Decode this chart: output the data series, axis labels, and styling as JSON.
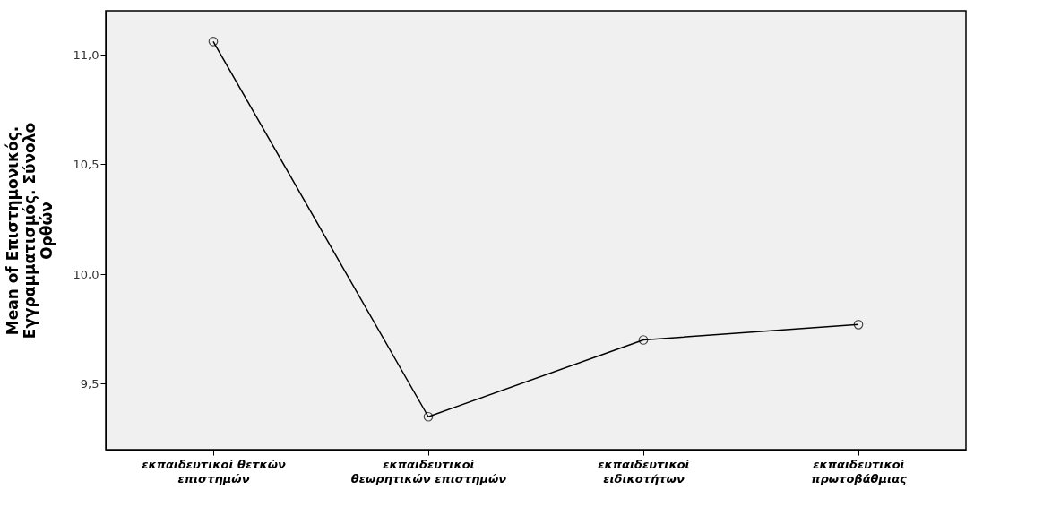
{
  "chart_data": {
    "type": "line",
    "ylabel": "Mean of Επιστημονικός. Εγγραμματισμός. Σύνολο Ορθών",
    "categories": [
      "εκπαιδευτικοί θετκών επιστημών",
      "εκπαιδευτικοί θεωρητικών επιστημών",
      "εκπαιδευτικοί ειδικοτήτων",
      "εκπαιδευτικοί πρωτοβάθμιας"
    ],
    "series": [
      {
        "color": "#000000",
        "values": [
          11.06,
          9.35,
          9.7,
          9.77
        ]
      }
    ],
    "ylim": [
      9.2,
      11.2
    ],
    "yticks": [
      {
        "value": 9.5,
        "label": "9,5"
      },
      {
        "value": 10.0,
        "label": "10,0"
      },
      {
        "value": 10.5,
        "label": "10,5"
      },
      {
        "value": 11.0,
        "label": "11,0"
      }
    ],
    "marker": "circle",
    "line_style": "solid",
    "grid": false
  }
}
